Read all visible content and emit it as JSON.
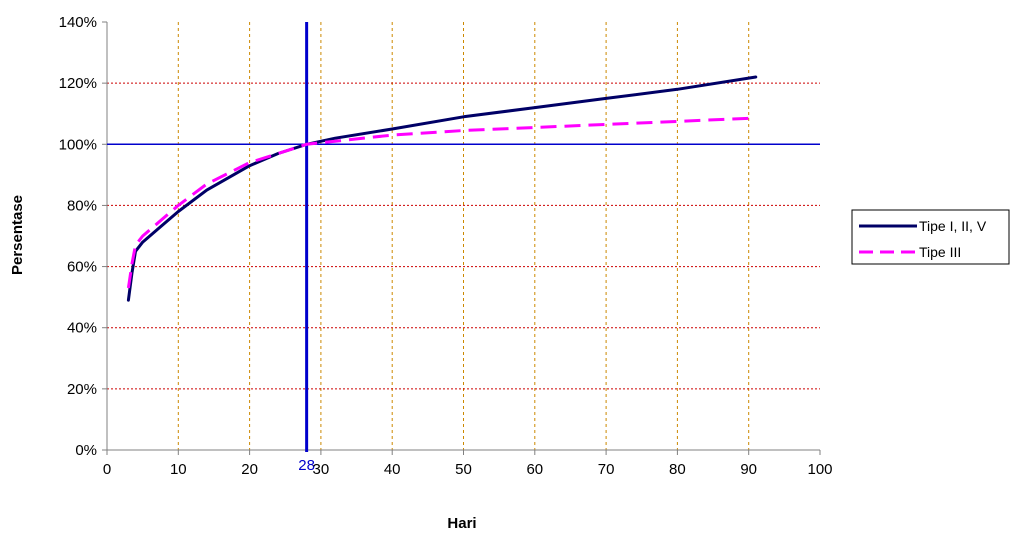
{
  "chart_data": {
    "type": "line",
    "title": "",
    "xlabel": "Hari",
    "ylabel": "Persentase",
    "xlim": [
      0,
      100
    ],
    "ylim": [
      0,
      140
    ],
    "x_ticks": [
      0,
      10,
      20,
      30,
      40,
      50,
      60,
      70,
      80,
      90,
      100
    ],
    "y_ticks": [
      0,
      20,
      40,
      60,
      80,
      100,
      120,
      140
    ],
    "y_tick_labels": [
      "0%",
      "20%",
      "40%",
      "60%",
      "80%",
      "100%",
      "120%",
      "140%"
    ],
    "x_tick_labels": [
      "0",
      "10",
      "20",
      "30",
      "40",
      "50",
      "60",
      "70",
      "80",
      "90",
      "100"
    ],
    "grid": true,
    "legend_position": "right",
    "reference_lines": {
      "vertical": {
        "x": 28,
        "label": "28",
        "color": "#0000cc"
      },
      "horizontal": {
        "y": 100,
        "color": "#0000cc"
      }
    },
    "series": [
      {
        "name": "Tipe I, II, V",
        "color": "#000066",
        "style": "solid",
        "x": [
          3,
          3.5,
          4,
          5,
          7,
          10,
          14,
          20,
          24,
          28,
          32,
          40,
          50,
          60,
          70,
          80,
          91
        ],
        "y": [
          49,
          58,
          65,
          68,
          72,
          78,
          85,
          93,
          97,
          100,
          102,
          105,
          109,
          112,
          115,
          118,
          122
        ]
      },
      {
        "name": "Tipe III",
        "color": "#ff00ff",
        "style": "dashed",
        "x": [
          3,
          3.5,
          4,
          5,
          7,
          10,
          14,
          20,
          24,
          28,
          32,
          40,
          50,
          60,
          70,
          80,
          90
        ],
        "y": [
          53,
          61,
          67,
          70,
          74,
          80,
          87,
          94,
          97,
          100,
          101,
          103,
          104.5,
          105.5,
          106.5,
          107.5,
          108.5
        ]
      }
    ]
  },
  "colors": {
    "y_grid": "#cc0000",
    "x_grid": "#cc8800",
    "axis": "#808080"
  }
}
